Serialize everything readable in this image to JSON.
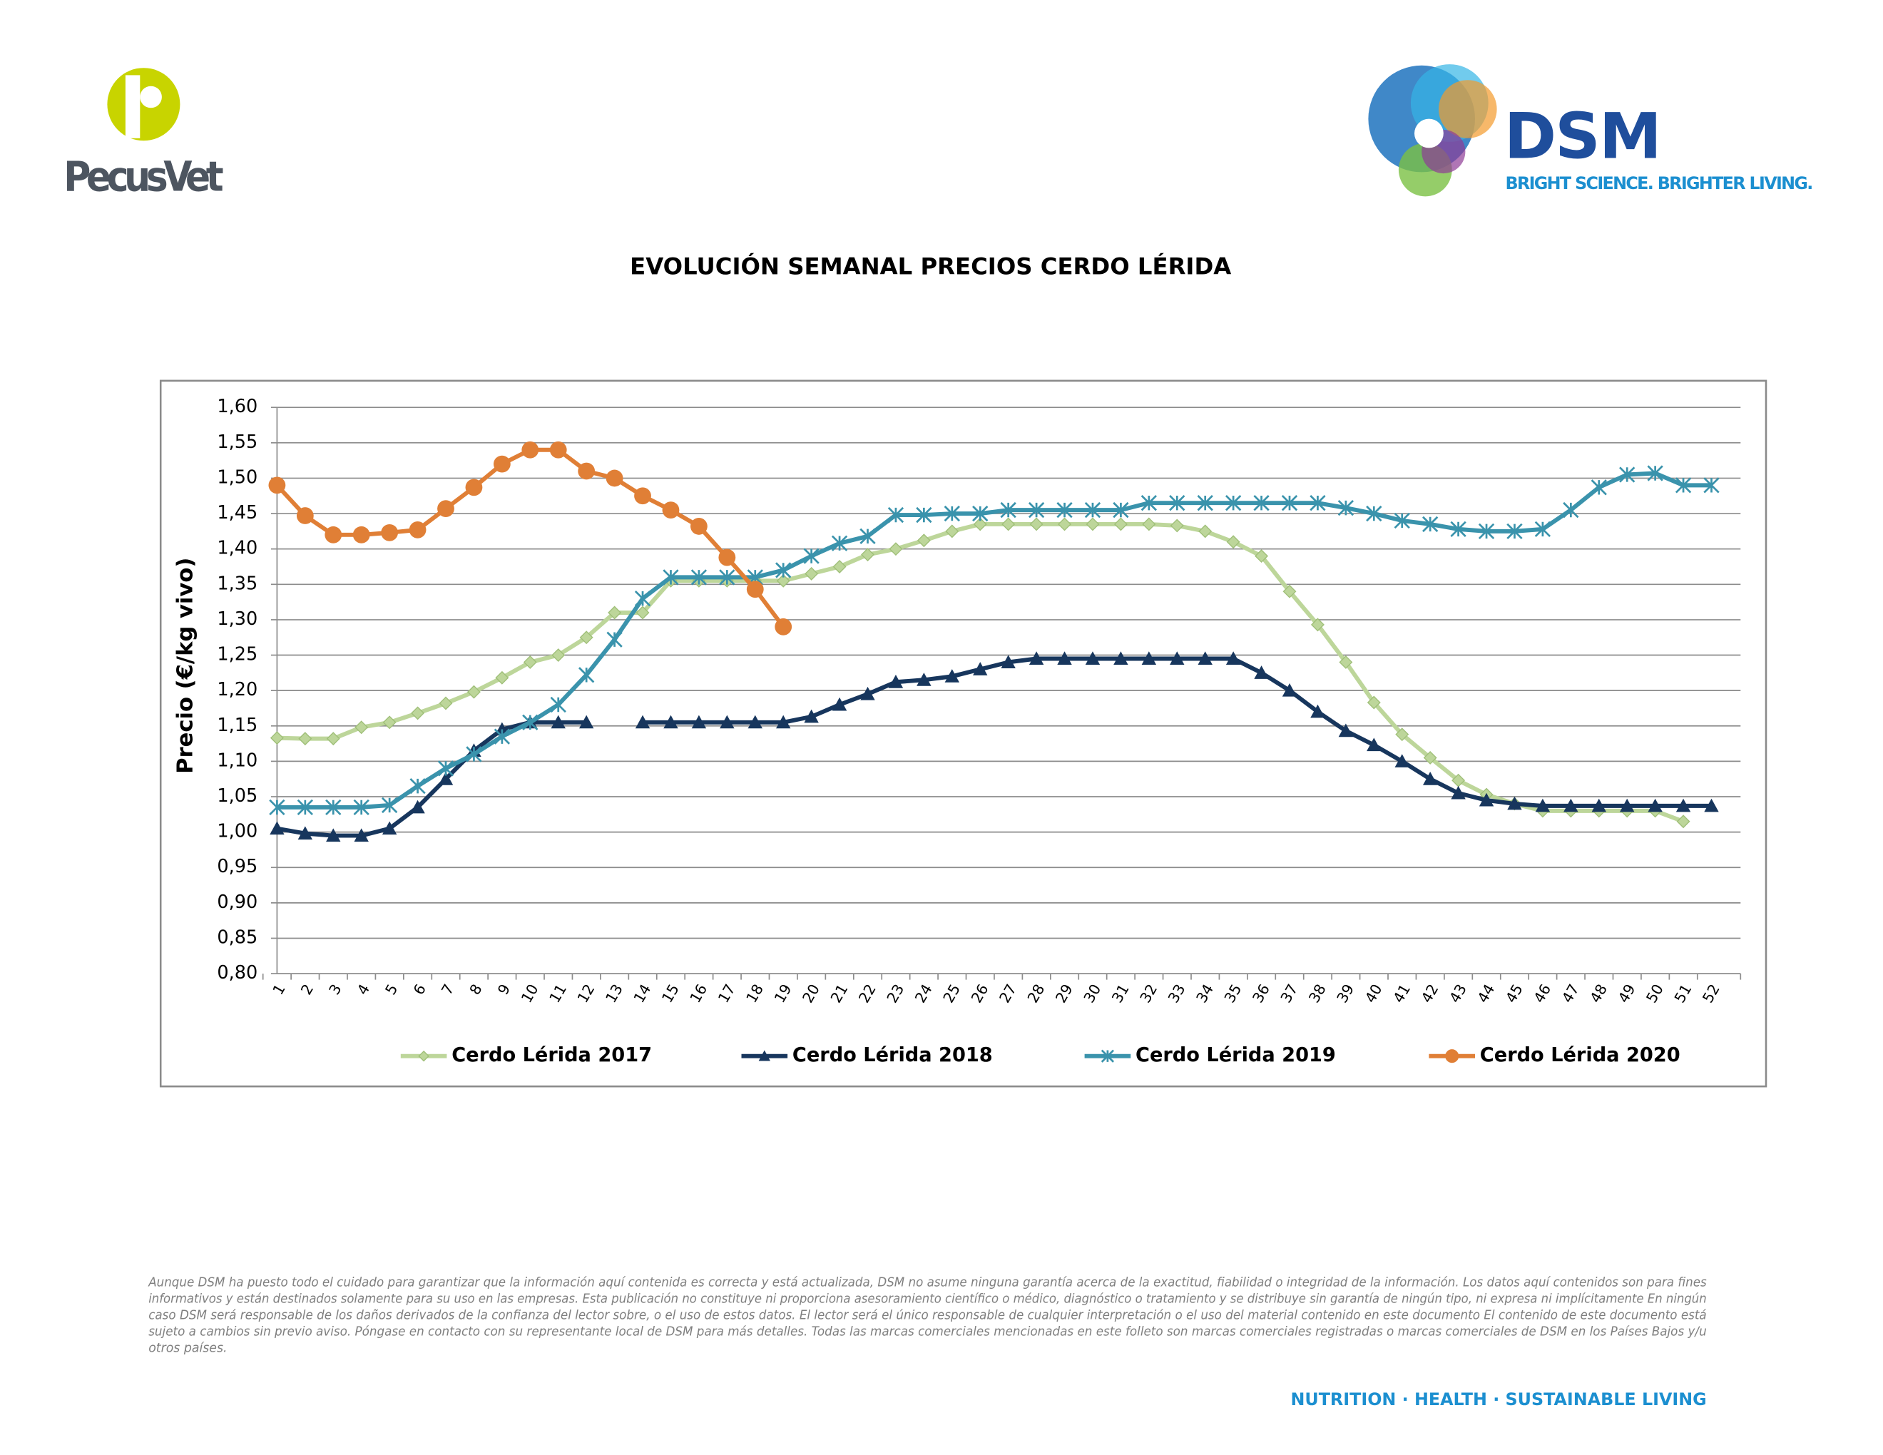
{
  "brand_left": "PecusVet",
  "brand_right": "DSM",
  "brand_right_tagline": "BRIGHT SCIENCE. BRIGHTER LIVING.",
  "chart_data": {
    "type": "line",
    "title": "EVOLUCIÓN SEMANAL PRECIOS CERDO LÉRIDA",
    "y_label": "Precio (€/kg vivo)",
    "categories": [
      "1",
      "2",
      "3",
      "4",
      "5",
      "6",
      "7",
      "8",
      "9",
      "10",
      "11",
      "12",
      "13",
      "14",
      "15",
      "16",
      "17",
      "18",
      "19",
      "20",
      "21",
      "22",
      "23",
      "24",
      "25",
      "26",
      "27",
      "28",
      "29",
      "30",
      "31",
      "32",
      "33",
      "34",
      "35",
      "36",
      "37",
      "38",
      "39",
      "40",
      "41",
      "42",
      "43",
      "44",
      "45",
      "46",
      "47",
      "48",
      "49",
      "50",
      "51",
      "52"
    ],
    "ylim": [
      0.8,
      1.6
    ],
    "yticks": [
      {
        "value": 0.8,
        "label": "0,80"
      },
      {
        "value": 0.85,
        "label": "0,85"
      },
      {
        "value": 0.9,
        "label": "0,90"
      },
      {
        "value": 0.95,
        "label": "0,95"
      },
      {
        "value": 1.0,
        "label": "1,00"
      },
      {
        "value": 1.05,
        "label": "1,05"
      },
      {
        "value": 1.1,
        "label": "1,10"
      },
      {
        "value": 1.15,
        "label": "1,15"
      },
      {
        "value": 1.2,
        "label": "1,20"
      },
      {
        "value": 1.25,
        "label": "1,25"
      },
      {
        "value": 1.3,
        "label": "1,30"
      },
      {
        "value": 1.35,
        "label": "1,35"
      },
      {
        "value": 1.4,
        "label": "1,40"
      },
      {
        "value": 1.45,
        "label": "1,45"
      },
      {
        "value": 1.5,
        "label": "1,50"
      },
      {
        "value": 1.55,
        "label": "1,55"
      },
      {
        "value": 1.6,
        "label": "1,60"
      }
    ],
    "grid": true,
    "legend": "bottom",
    "series": [
      {
        "name": "Cerdo Lérida 2017",
        "color": "#bdd69a",
        "marker": "diamond",
        "values": [
          1.133,
          1.132,
          1.132,
          1.148,
          1.155,
          1.168,
          1.182,
          1.198,
          1.218,
          1.24,
          1.25,
          1.275,
          1.31,
          1.31,
          1.355,
          1.355,
          1.355,
          1.355,
          1.355,
          1.365,
          1.375,
          1.392,
          1.4,
          1.412,
          1.425,
          1.435,
          1.435,
          1.435,
          1.435,
          1.435,
          1.435,
          1.435,
          1.433,
          1.425,
          1.41,
          1.39,
          1.34,
          1.293,
          1.24,
          1.183,
          1.138,
          1.105,
          1.073,
          1.053,
          1.04,
          1.03,
          1.03,
          1.03,
          1.03,
          1.03,
          1.015,
          null
        ]
      },
      {
        "name": "Cerdo Lérida 2018",
        "color": "#17365d",
        "marker": "triangle",
        "values": [
          1.005,
          0.998,
          0.995,
          0.995,
          1.005,
          1.035,
          1.075,
          1.115,
          1.145,
          1.155,
          1.155,
          1.155,
          null,
          1.155,
          1.155,
          1.155,
          1.155,
          1.155,
          1.155,
          1.163,
          1.18,
          1.195,
          1.212,
          1.215,
          1.22,
          1.23,
          1.24,
          1.245,
          1.245,
          1.245,
          1.245,
          1.245,
          1.245,
          1.245,
          1.245,
          1.225,
          1.2,
          1.17,
          1.143,
          1.123,
          1.1,
          1.075,
          1.055,
          1.045,
          1.04,
          1.037,
          1.037,
          1.037,
          1.037,
          1.037,
          1.037,
          1.037
        ]
      },
      {
        "name": "Cerdo Lérida 2019",
        "color": "#3a93ac",
        "marker": "star",
        "values": [
          1.035,
          1.035,
          1.035,
          1.035,
          1.038,
          1.065,
          1.09,
          1.11,
          1.135,
          1.155,
          1.18,
          1.222,
          1.272,
          1.33,
          1.36,
          1.36,
          1.36,
          1.36,
          1.37,
          1.39,
          1.408,
          1.418,
          1.448,
          1.448,
          1.45,
          1.45,
          1.455,
          1.455,
          1.455,
          1.455,
          1.455,
          1.465,
          1.465,
          1.465,
          1.465,
          1.465,
          1.465,
          1.465,
          1.458,
          1.45,
          1.44,
          1.435,
          1.428,
          1.425,
          1.425,
          1.428,
          1.455,
          1.487,
          1.505,
          1.507,
          1.49,
          1.49
        ]
      },
      {
        "name": "Cerdo Lérida 2020",
        "color": "#e07f36",
        "marker": "circle",
        "values": [
          1.49,
          1.447,
          1.42,
          1.42,
          1.423,
          1.427,
          1.457,
          1.487,
          1.52,
          1.54,
          1.54,
          1.51,
          1.5,
          1.475,
          1.455,
          1.432,
          1.388,
          1.343,
          1.29,
          null,
          null,
          null,
          null,
          null,
          null,
          null,
          null,
          null,
          null,
          null,
          null,
          null,
          null,
          null,
          null,
          null,
          null,
          null,
          null,
          null,
          null,
          null,
          null,
          null,
          null,
          null,
          null,
          null,
          null,
          null,
          null,
          null
        ]
      }
    ]
  },
  "disclaimer": [
    "Aunque DSM ha puesto todo el cuidado para garantizar que la información aquí contenida es correcta y está actualizada, DSM no asume ninguna garantía acerca de la exactitud, fiabilidad o integridad de la información. Los datos aquí contenidos son para fines",
    "informativos y están destinados solamente para su uso en las empresas. Esta publicación no constituye ni proporciona asesoramiento científico o médico, diagnóstico o tratamiento y se distribuye sin garantía de ningún tipo, ni expresa ni implícitamente En ningún",
    "caso DSM será responsable de los daños derivados de la confianza del lector sobre, o el uso de estos datos. El lector será el único responsable de cualquier interpretación o el uso del material contenido en este documento El contenido de este documento está",
    "sujeto a cambios sin previo aviso. Póngase en contacto con su representante local de DSM para más detalles. Todas las marcas comerciales mencionadas en este folleto son marcas comerciales registradas o marcas comerciales de DSM en los Países Bajos y/u",
    "otros países."
  ],
  "footer": "NUTRITION · HEALTH · SUSTAINABLE LIVING"
}
